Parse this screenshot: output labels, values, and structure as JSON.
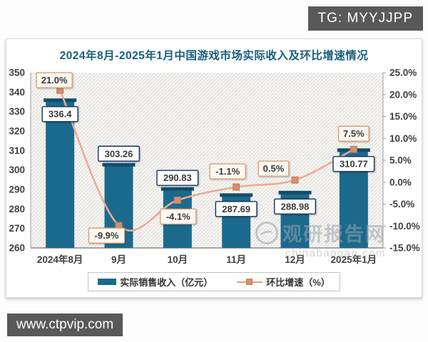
{
  "tg_badge": {
    "label": "TG: MYYJJPP"
  },
  "site_badge": {
    "label": "www.ctpvip.com"
  },
  "watermark": {
    "name": "观研报告网",
    "domain": "chinabaogao.com"
  },
  "chart_data": {
    "type": "bar",
    "title": "2024年8月-2025年1月中国游戏市场实际收入及环比增速情况",
    "categories": [
      "2024年8月",
      "9月",
      "10月",
      "11月",
      "12月",
      "2025年1月"
    ],
    "series": [
      {
        "name": "实际销售收入（亿元）",
        "type": "bar",
        "axis": "left",
        "values": [
          336.4,
          303.26,
          290.83,
          287.69,
          288.98,
          310.77
        ]
      },
      {
        "name": "环比增速（%）",
        "type": "line",
        "axis": "right",
        "values": [
          21.0,
          -9.9,
          -4.1,
          -1.1,
          0.5,
          7.5
        ]
      }
    ],
    "y_left": {
      "min": 260,
      "max": 350,
      "step": 10
    },
    "y_right": {
      "min": -15,
      "max": 25,
      "step": 5,
      "format": "percent"
    },
    "legend_position": "bottom",
    "grid": false,
    "colors": {
      "bar": "#1b6a8e",
      "bar_cap": "#114e6c",
      "line": "#ecab92",
      "marker": "#d98e6f",
      "marker_border": "#c07a5b",
      "title": "#175e7d",
      "axis_text": "#404040",
      "value_label_border": "#17365d",
      "pct_label_border": "#d9a479",
      "pct_label_bg": "#fdf8f0"
    }
  }
}
